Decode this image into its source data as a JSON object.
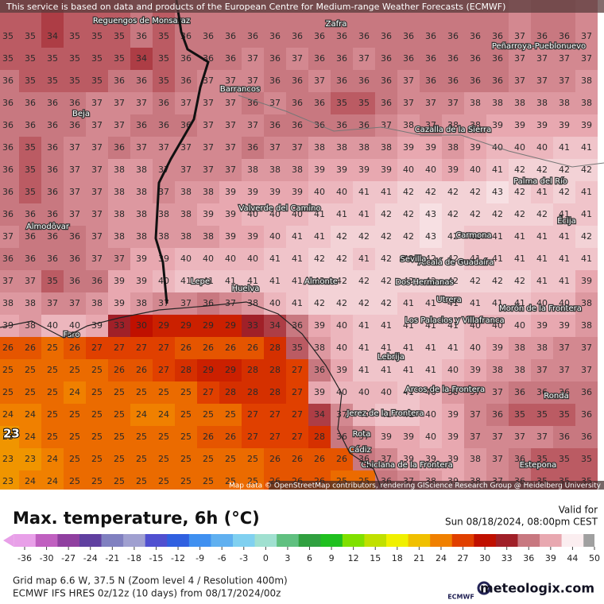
{
  "header": {
    "notice": "This service is based on data and products of the European Centre for Medium-range Weather Forecasts (ECMWF)",
    "attribution": "Map data © OpenStreetMap contributors, rendering GIScience Research Group @ Heidelberg University"
  },
  "grid": {
    "rows": [
      [
        35,
        35,
        34,
        35,
        35,
        35,
        36,
        35,
        36,
        36,
        36,
        36,
        36,
        36,
        36,
        36,
        36,
        36,
        36,
        36,
        36,
        36,
        36,
        37,
        36,
        36,
        37
      ],
      [
        35,
        35,
        35,
        35,
        35,
        35,
        34,
        35,
        36,
        36,
        36,
        37,
        36,
        37,
        36,
        36,
        37,
        36,
        36,
        36,
        36,
        36,
        36,
        37,
        37,
        37,
        37
      ],
      [
        36,
        35,
        35,
        35,
        35,
        36,
        36,
        35,
        36,
        37,
        37,
        37,
        36,
        36,
        37,
        36,
        36,
        36,
        37,
        36,
        36,
        36,
        36,
        37,
        37,
        37,
        38
      ],
      [
        36,
        36,
        36,
        36,
        37,
        37,
        37,
        36,
        37,
        37,
        37,
        36,
        37,
        36,
        36,
        35,
        35,
        36,
        37,
        37,
        37,
        38,
        38,
        38,
        38,
        38,
        38
      ],
      [
        36,
        36,
        36,
        36,
        37,
        37,
        36,
        36,
        36,
        37,
        37,
        37,
        36,
        36,
        36,
        36,
        36,
        37,
        38,
        37,
        38,
        38,
        39,
        39,
        39,
        39,
        39
      ],
      [
        36,
        35,
        36,
        37,
        37,
        36,
        37,
        37,
        37,
        37,
        37,
        36,
        37,
        37,
        38,
        38,
        38,
        38,
        39,
        39,
        38,
        39,
        40,
        40,
        40,
        41,
        41
      ],
      [
        36,
        35,
        36,
        37,
        37,
        38,
        38,
        37,
        37,
        37,
        37,
        38,
        38,
        38,
        39,
        39,
        39,
        39,
        40,
        40,
        39,
        40,
        41,
        42,
        42,
        42,
        42
      ],
      [
        36,
        35,
        36,
        37,
        37,
        38,
        38,
        37,
        38,
        38,
        39,
        39,
        39,
        39,
        40,
        40,
        41,
        41,
        42,
        42,
        42,
        42,
        43,
        42,
        41,
        42,
        41
      ],
      [
        36,
        36,
        36,
        37,
        37,
        38,
        38,
        38,
        38,
        39,
        39,
        40,
        40,
        40,
        41,
        41,
        41,
        42,
        42,
        43,
        42,
        42,
        42,
        42,
        42,
        41,
        41
      ],
      [
        37,
        36,
        36,
        36,
        37,
        38,
        38,
        38,
        38,
        38,
        39,
        39,
        40,
        41,
        41,
        42,
        42,
        42,
        42,
        43,
        42,
        41,
        41,
        41,
        41,
        41,
        42
      ],
      [
        36,
        36,
        36,
        36,
        37,
        37,
        39,
        39,
        40,
        40,
        40,
        40,
        41,
        41,
        42,
        42,
        41,
        42,
        42,
        42,
        42,
        41,
        41,
        41,
        41,
        41,
        41
      ],
      [
        37,
        37,
        35,
        36,
        36,
        39,
        39,
        40,
        41,
        41,
        41,
        41,
        41,
        41,
        42,
        42,
        42,
        42,
        42,
        42,
        42,
        42,
        42,
        42,
        41,
        41,
        39
      ],
      [
        38,
        38,
        37,
        37,
        38,
        39,
        38,
        37,
        37,
        36,
        37,
        38,
        40,
        41,
        42,
        42,
        42,
        42,
        41,
        41,
        41,
        41,
        41,
        41,
        40,
        40,
        38
      ],
      [
        39,
        38,
        40,
        40,
        39,
        33,
        30,
        29,
        29,
        29,
        29,
        33,
        34,
        36,
        39,
        40,
        41,
        41,
        41,
        41,
        41,
        40,
        40,
        40,
        39,
        39,
        38
      ],
      [
        26,
        26,
        25,
        26,
        27,
        27,
        27,
        27,
        26,
        26,
        26,
        26,
        28,
        35,
        38,
        40,
        41,
        41,
        41,
        41,
        41,
        40,
        39,
        38,
        38,
        37,
        37
      ],
      [
        25,
        25,
        25,
        25,
        25,
        26,
        26,
        27,
        28,
        29,
        29,
        28,
        28,
        27,
        36,
        39,
        41,
        41,
        41,
        41,
        40,
        39,
        38,
        38,
        37,
        37,
        37
      ],
      [
        25,
        25,
        25,
        24,
        25,
        25,
        25,
        25,
        25,
        27,
        28,
        28,
        28,
        27,
        39,
        40,
        40,
        40,
        41,
        40,
        38,
        37,
        37,
        36,
        36,
        36,
        36
      ],
      [
        24,
        24,
        25,
        25,
        25,
        25,
        24,
        24,
        25,
        25,
        25,
        27,
        27,
        27,
        34,
        37,
        40,
        41,
        41,
        40,
        39,
        37,
        36,
        35,
        35,
        35,
        36
      ],
      [
        23,
        24,
        25,
        25,
        25,
        25,
        25,
        25,
        25,
        26,
        26,
        27,
        27,
        27,
        28,
        36,
        37,
        39,
        39,
        40,
        39,
        37,
        37,
        37,
        37,
        36,
        36
      ],
      [
        23,
        23,
        24,
        25,
        25,
        25,
        25,
        25,
        25,
        25,
        25,
        25,
        26,
        26,
        26,
        26,
        36,
        37,
        39,
        39,
        39,
        38,
        37,
        36,
        35,
        35,
        35
      ],
      [
        23,
        24,
        24,
        25,
        25,
        25,
        25,
        25,
        25,
        25,
        25,
        25,
        26,
        26,
        26,
        25,
        25,
        36,
        37,
        38,
        39,
        38,
        37,
        36,
        35,
        35,
        35
      ]
    ],
    "min_marker": 23
  },
  "places": [
    "Reguengos de Monsaraz",
    "Zafra",
    "Peñarroya-Pueblonuevo",
    "Barrancos",
    "Beja",
    "Cazalla de la Sierra",
    "Palma del Río",
    "Valverde del Camino",
    "Almodôvar",
    "Carmona",
    "Écija",
    "Alcalá de Guadaíra",
    "Sevilla",
    "Lepe",
    "Huelva",
    "Almonte",
    "Dos Hermanas",
    "Utrera",
    "Morón de la Frontera",
    "Los Palacios y Villafranca",
    "Faro",
    "Lebrija",
    "Arcos de la Frontera",
    "Ronda",
    "Jerez de la Frontera",
    "Rota",
    "Cádiz",
    "Chiclana de la Frontera",
    "Estepona"
  ],
  "footer": {
    "title": "Max. temperature, 6h (°C)",
    "valid_label": "Valid for",
    "valid_time": "Sun 08/18/2024, 08:00pm CEST",
    "grid_info": "Grid map 6.6 W, 37.5 N (Zoom level 4 / Resolution 400m)",
    "model_info": "ECMWF IFS HRES 0z/12z (10 days) from 08/17/2024/00z",
    "ecmwf": "ECMWF",
    "brand": "meteologix.com"
  },
  "legend": {
    "ticks": [
      -36,
      -30,
      -27,
      -24,
      -21,
      -18,
      -15,
      -12,
      -9,
      -6,
      -3,
      0,
      3,
      6,
      9,
      12,
      15,
      18,
      21,
      24,
      27,
      30,
      33,
      36,
      39,
      44,
      50
    ],
    "colors": [
      "#e8a0e8",
      "#c060c0",
      "#9040a0",
      "#6040a0",
      "#8080c0",
      "#a0a0d0",
      "#5050d0",
      "#3060e0",
      "#4090f0",
      "#60b0f0",
      "#80d0f0",
      "#a0e0d0",
      "#60c080",
      "#30a040",
      "#20c020",
      "#80e000",
      "#c0e000",
      "#f0f000",
      "#f0c000",
      "#f08000",
      "#e04000",
      "#c01000",
      "#a02028",
      "#c87880",
      "#e8a8b0",
      "#fbeef0",
      "#a0a0a0"
    ]
  }
}
